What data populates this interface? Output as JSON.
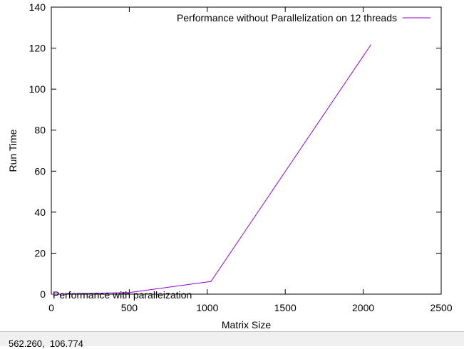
{
  "chart_data": {
    "type": "line",
    "xlabel": "Matrix Size",
    "ylabel": "Run Time",
    "xlim": [
      0,
      2500
    ],
    "ylim": [
      0,
      140
    ],
    "xticks": [
      0,
      500,
      1000,
      1500,
      2000,
      2500
    ],
    "yticks": [
      0,
      20,
      40,
      60,
      80,
      100,
      120,
      140
    ],
    "grid": false,
    "legend_position": "top-right",
    "series": [
      {
        "name": "Performance without Parallelization on 12 threads",
        "color": "#9400d3",
        "x": [
          0,
          500,
          1024,
          2048
        ],
        "y": [
          0,
          0.8,
          6.2,
          121.5
        ]
      }
    ],
    "annotations": [
      {
        "text": "Performance with paralleization",
        "x": 0,
        "y": 0
      }
    ]
  },
  "status_bar": {
    "coordinates": "562.260,  106.774"
  }
}
